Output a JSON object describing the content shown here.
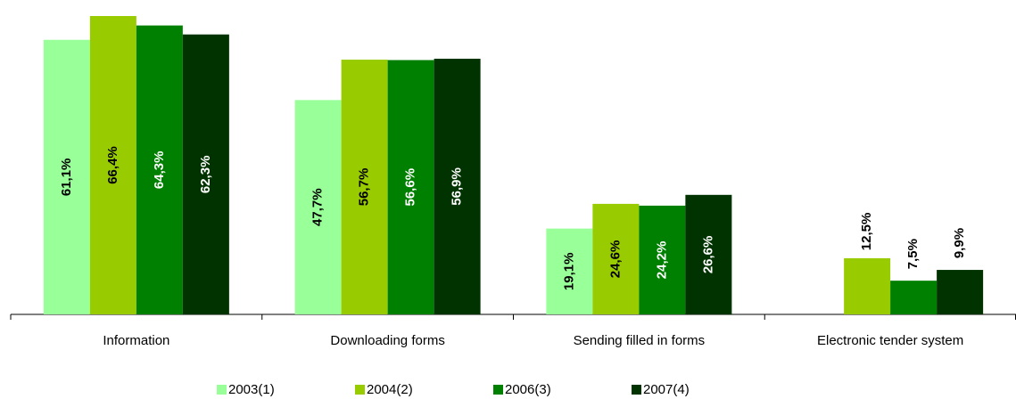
{
  "chart_data": {
    "type": "bar",
    "categories": [
      "Information",
      "Downloading forms",
      "Sending filled in forms",
      "Electronic tender system"
    ],
    "series": [
      {
        "name": "2003(1)",
        "color": "#99ff99",
        "values": [
          61.1,
          47.7,
          19.1,
          null
        ],
        "value_labels": [
          "61,1%",
          "47,7%",
          "19,1%",
          null
        ]
      },
      {
        "name": "2004(2)",
        "color": "#99cc00",
        "values": [
          66.4,
          56.7,
          24.6,
          12.5
        ],
        "value_labels": [
          "66,4%",
          "56,7%",
          "24,6%",
          "12,5%"
        ]
      },
      {
        "name": "2006(3)",
        "color": "#008000",
        "values": [
          64.3,
          56.6,
          24.2,
          7.5
        ],
        "value_labels": [
          "64,3%",
          "56,6%",
          "24,2%",
          "7,5%"
        ]
      },
      {
        "name": "2007(4)",
        "color": "#003300",
        "values": [
          62.3,
          56.9,
          26.6,
          9.9
        ],
        "value_labels": [
          "62,3%",
          "56,9%",
          "26,6%",
          "9,9%"
        ]
      }
    ]
  }
}
